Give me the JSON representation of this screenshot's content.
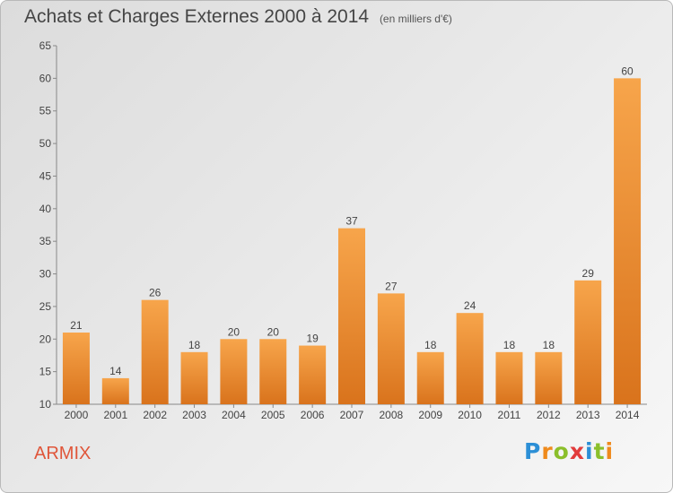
{
  "chart_data": {
    "type": "bar",
    "title": "Achats et Charges Externes 2000 à 2014",
    "subtitle": "(en milliers d'€)",
    "categories": [
      "2000",
      "2001",
      "2002",
      "2003",
      "2004",
      "2005",
      "2006",
      "2007",
      "2008",
      "2009",
      "2010",
      "2011",
      "2012",
      "2013",
      "2014"
    ],
    "values": [
      21,
      14,
      26,
      18,
      20,
      20,
      19,
      37,
      27,
      18,
      24,
      18,
      18,
      29,
      60
    ],
    "ylim": [
      10,
      65
    ],
    "yticks": [
      10,
      15,
      20,
      25,
      30,
      35,
      40,
      45,
      50,
      55,
      60,
      65
    ],
    "grid": false,
    "bar_color": "#f39a3a",
    "xlabel": "",
    "ylabel": ""
  },
  "footer": {
    "city": "ARMIX",
    "logo": [
      "P",
      "r",
      "o",
      "x",
      "i",
      "t",
      "i"
    ],
    "logo_colors": [
      "#2c8fd6",
      "#ef8a1c",
      "#8bbf2b",
      "#e23c3c",
      "#2c8fd6",
      "#8bbf2b",
      "#ef8a1c"
    ]
  }
}
